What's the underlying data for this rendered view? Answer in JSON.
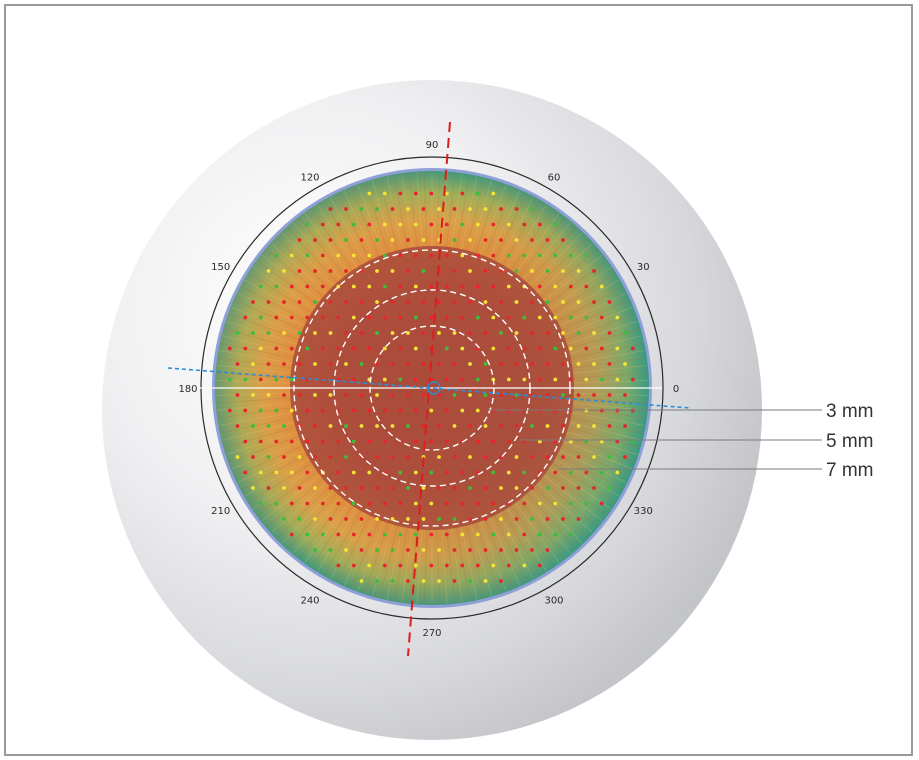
{
  "colors": {
    "dot_red": "#e8242c",
    "dot_yellow": "#f4e534",
    "dot_green": "#3bbf3b",
    "meridian_red": "#dd1c1c",
    "axis_blue": "#2a8fd8"
  },
  "degree_labels": [
    {
      "angle": 0,
      "text": "0"
    },
    {
      "angle": 30,
      "text": "30"
    },
    {
      "angle": 60,
      "text": "60"
    },
    {
      "angle": 90,
      "text": "90"
    },
    {
      "angle": 120,
      "text": "120"
    },
    {
      "angle": 150,
      "text": "150"
    },
    {
      "angle": 180,
      "text": "180"
    },
    {
      "angle": 210,
      "text": "210"
    },
    {
      "angle": 240,
      "text": "240"
    },
    {
      "angle": 270,
      "text": "270"
    },
    {
      "angle": 300,
      "text": "300"
    },
    {
      "angle": 330,
      "text": "330"
    }
  ],
  "zones": [
    {
      "label": "3 mm"
    },
    {
      "label": "5 mm"
    },
    {
      "label": "7 mm"
    }
  ]
}
